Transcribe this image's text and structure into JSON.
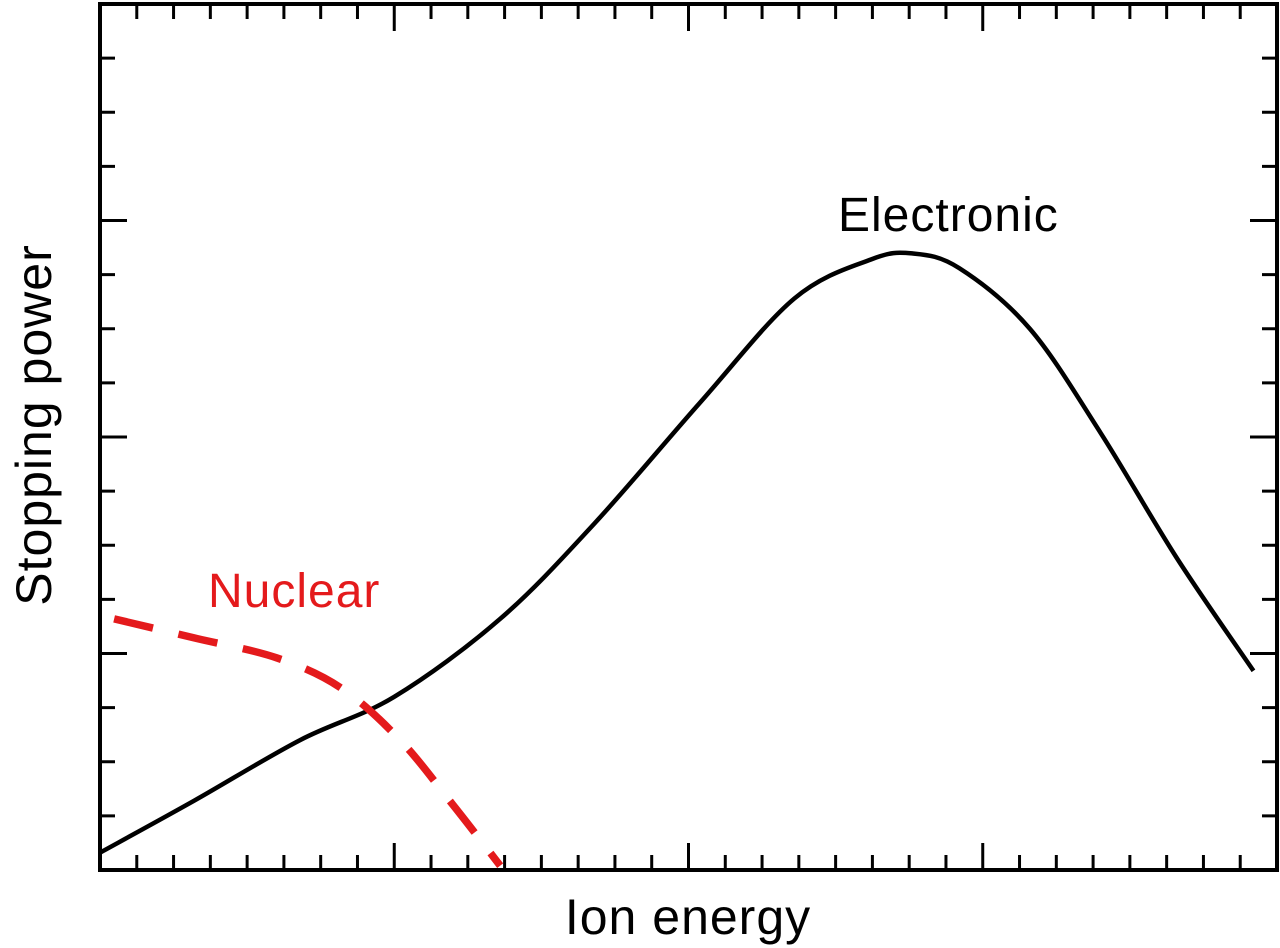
{
  "page": {
    "background": "#ffffff"
  },
  "chart_data": {
    "type": "line",
    "title": "",
    "xlabel": "Ion energy",
    "ylabel": "Stopping power",
    "xlim": [
      0,
      1
    ],
    "ylim": [
      0,
      1
    ],
    "x_tick_labels": [],
    "y_tick_labels": [],
    "grid": false,
    "legend": "none",
    "annotations": [
      "Electronic",
      "Nuclear"
    ],
    "axis_color": "#000000",
    "ticks": {
      "x_divisions": 32,
      "x_major_every": 8,
      "y_divisions": 16,
      "y_major_every": 4,
      "sides": [
        "bottom",
        "top",
        "left",
        "right"
      ]
    },
    "series": [
      {
        "name": "Electronic",
        "color": "#000000",
        "line_style": "solid",
        "points": [
          [
            0.0,
            0.02
          ],
          [
            0.08,
            0.08
          ],
          [
            0.17,
            0.15
          ],
          [
            0.25,
            0.2
          ],
          [
            0.34,
            0.29
          ],
          [
            0.42,
            0.4
          ],
          [
            0.51,
            0.54
          ],
          [
            0.59,
            0.66
          ],
          [
            0.655,
            0.705
          ],
          [
            0.69,
            0.712
          ],
          [
            0.73,
            0.695
          ],
          [
            0.79,
            0.625
          ],
          [
            0.85,
            0.505
          ],
          [
            0.915,
            0.36
          ],
          [
            0.98,
            0.23
          ]
        ]
      },
      {
        "name": "Nuclear",
        "color": "#e41a1c",
        "line_style": "dashed",
        "points": [
          [
            0.012,
            0.29
          ],
          [
            0.08,
            0.268
          ],
          [
            0.15,
            0.245
          ],
          [
            0.205,
            0.21
          ],
          [
            0.255,
            0.15
          ],
          [
            0.3,
            0.075
          ],
          [
            0.34,
            0.005
          ]
        ]
      }
    ]
  }
}
